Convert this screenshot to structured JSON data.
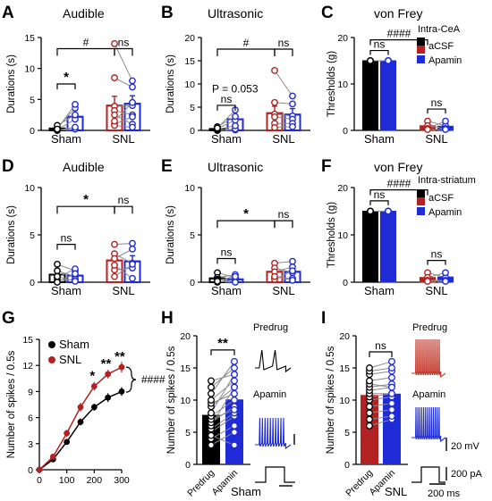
{
  "colors": {
    "sham": "#000000",
    "snl": "#b22222",
    "apamin": "#1f2bd6",
    "acsf": "#000000",
    "snl_acsf": "#b22222",
    "trace_predrug_sham": "#000000",
    "trace_predrug_snl": "#c0392b",
    "trace_apamin": "#1f2bd6",
    "gray_line": "#8a8a8a"
  },
  "chart_data": [
    {
      "panel": "A",
      "type": "bar",
      "title": "Audible",
      "ylabel": "Durations (s)",
      "ylim": [
        0,
        15
      ],
      "yticks": [
        0,
        5,
        10,
        15
      ],
      "groups": [
        "Sham",
        "SNL"
      ],
      "series": [
        {
          "name": "aCSF",
          "values": [
            0.3,
            4.0
          ],
          "err": [
            0.2,
            1.5
          ]
        },
        {
          "name": "Apamin",
          "values": [
            2.2,
            4.3
          ],
          "err": [
            1.0,
            1.3
          ]
        }
      ],
      "paired_points": [
        [
          [
            0,
            0.2
          ],
          [
            0,
            0.5
          ],
          [
            0.1,
            1.8
          ],
          [
            0.4,
            3.6
          ],
          [
            0.8,
            2.5
          ],
          [
            0.2,
            4.2
          ]
        ],
        [
          [
            14.0,
            8.0
          ],
          [
            8.5,
            7.0
          ],
          [
            3.9,
            4.0
          ],
          [
            3.2,
            2.5
          ],
          [
            1.0,
            2.2
          ],
          [
            2.5,
            1.0
          ],
          [
            0.8,
            0.5
          ],
          [
            1.5,
            4.5
          ]
        ]
      ],
      "annotations": [
        "*",
        "#",
        "ns"
      ]
    },
    {
      "panel": "B",
      "type": "bar",
      "title": "Ultrasonic",
      "ylabel": "Durations (s)",
      "ylim": [
        0,
        20
      ],
      "yticks": [
        0,
        5,
        10,
        15,
        20
      ],
      "groups": [
        "Sham",
        "SNL"
      ],
      "series": [
        {
          "name": "aCSF",
          "values": [
            0.3,
            3.7
          ],
          "err": [
            0.2,
            1.5
          ]
        },
        {
          "name": "Apamin",
          "values": [
            2.4,
            3.4
          ],
          "err": [
            0.9,
            1.3
          ]
        }
      ],
      "paired_points": [
        [
          [
            0,
            0.1
          ],
          [
            0,
            0.3
          ],
          [
            0.2,
            1.0
          ],
          [
            0.4,
            2.2
          ],
          [
            0.8,
            3.0
          ],
          [
            0.5,
            4.4
          ]
        ],
        [
          [
            12.9,
            7.4
          ],
          [
            6.0,
            5.7
          ],
          [
            3.5,
            3.1
          ],
          [
            2.9,
            2.4
          ],
          [
            1.5,
            1.5
          ],
          [
            0.6,
            0.8
          ]
        ]
      ],
      "annotations": [
        "P = 0.053",
        "#",
        "ns",
        "ns"
      ]
    },
    {
      "panel": "C",
      "type": "bar",
      "title": "von Frey",
      "ylabel": "Thresholds (g)",
      "ylim": [
        0,
        20
      ],
      "yticks": [
        0,
        10,
        20
      ],
      "groups": [
        "Sham",
        "SNL"
      ],
      "series": [
        {
          "name": "aCSF",
          "values": [
            15,
            1.0
          ],
          "err": [
            0.2,
            0.8
          ]
        },
        {
          "name": "Apamin",
          "values": [
            15,
            0.9
          ],
          "err": [
            0.2,
            0.6
          ]
        }
      ],
      "paired_points": [
        [
          [
            15,
            15
          ],
          [
            15,
            15
          ],
          [
            15,
            15
          ],
          [
            15,
            15
          ]
        ],
        [
          [
            2.0,
            1.0
          ],
          [
            1.0,
            0.4
          ],
          [
            0.4,
            2.0
          ],
          [
            0.2,
            0.2
          ]
        ]
      ],
      "legend_title": "Intra-CeA",
      "legend": [
        "aCSF",
        "Apamin"
      ],
      "annotations": [
        "####",
        "ns",
        "ns"
      ]
    },
    {
      "panel": "D",
      "type": "bar",
      "title": "Audible",
      "ylabel": "Durations (s)",
      "ylim": [
        0,
        10
      ],
      "yticks": [
        0,
        5,
        10
      ],
      "groups": [
        "Sham",
        "SNL"
      ],
      "series": [
        {
          "name": "aCSF",
          "values": [
            0.8,
            2.3
          ],
          "err": [
            0.4,
            0.7
          ]
        },
        {
          "name": "Apamin",
          "values": [
            0.7,
            2.2
          ],
          "err": [
            0.4,
            0.6
          ]
        }
      ],
      "paired_points": [
        [
          [
            1.9,
            1.2
          ],
          [
            1.2,
            0.6
          ],
          [
            0.5,
            1.4
          ],
          [
            0.2,
            0.3
          ],
          [
            0,
            0.9
          ],
          [
            0.6,
            0.1
          ]
        ],
        [
          [
            4.0,
            4.1
          ],
          [
            3.0,
            2.0
          ],
          [
            2.5,
            3.5
          ],
          [
            1.3,
            1.5
          ],
          [
            0.6,
            1.9
          ],
          [
            1.8,
            0.4
          ]
        ]
      ],
      "annotations": [
        "ns",
        "*",
        "ns"
      ]
    },
    {
      "panel": "E",
      "type": "bar",
      "title": "Ultrasonic",
      "ylabel": "Durations (s)",
      "ylim": [
        0,
        10
      ],
      "yticks": [
        0,
        5,
        10
      ],
      "groups": [
        "Sham",
        "SNL"
      ],
      "series": [
        {
          "name": "aCSF",
          "values": [
            0.4,
            1.1
          ],
          "err": [
            0.2,
            0.5
          ]
        },
        {
          "name": "Apamin",
          "values": [
            0.3,
            1.1
          ],
          "err": [
            0.2,
            0.4
          ]
        }
      ],
      "paired_points": [
        [
          [
            1.0,
            0.5
          ],
          [
            0.5,
            0.8
          ],
          [
            0.3,
            0.1
          ],
          [
            0,
            0.3
          ],
          [
            0.2,
            0.6
          ],
          [
            0.1,
            0
          ]
        ],
        [
          [
            2.0,
            2.2
          ],
          [
            1.5,
            1.0
          ],
          [
            1.1,
            1.6
          ],
          [
            0.5,
            0.4
          ],
          [
            0.3,
            1.2
          ],
          [
            0.6,
            0.2
          ]
        ]
      ],
      "annotations": [
        "ns",
        "*",
        "ns"
      ]
    },
    {
      "panel": "F",
      "type": "bar",
      "title": "von Frey",
      "ylabel": "Thresholds (g)",
      "ylim": [
        0,
        20
      ],
      "yticks": [
        0,
        10,
        20
      ],
      "groups": [
        "Sham",
        "SNL"
      ],
      "series": [
        {
          "name": "aCSF",
          "values": [
            15,
            1.0
          ],
          "err": [
            0.2,
            0.6
          ]
        },
        {
          "name": "Apamin",
          "values": [
            15,
            1.1
          ],
          "err": [
            0.2,
            0.6
          ]
        }
      ],
      "paired_points": [
        [
          [
            15,
            15
          ],
          [
            15,
            15
          ],
          [
            15,
            15
          ],
          [
            15,
            15
          ]
        ],
        [
          [
            2.0,
            1.0
          ],
          [
            1.0,
            2.0
          ],
          [
            0.4,
            0.4
          ],
          [
            0.2,
            0.2
          ]
        ]
      ],
      "legend_title": "Intra-striatum",
      "legend": [
        "aCSF",
        "Apamin"
      ],
      "annotations": [
        "####",
        "ns",
        "ns"
      ]
    },
    {
      "panel": "G",
      "type": "line",
      "ylabel": "Number of spikes / 0.5s",
      "xlim": [
        0,
        300
      ],
      "xticks": [
        0,
        100,
        200,
        300
      ],
      "ylim": [
        0,
        15
      ],
      "yticks": [
        0,
        3,
        6,
        9,
        12,
        15
      ],
      "x": [
        0,
        50,
        100,
        150,
        200,
        250,
        300
      ],
      "series": [
        {
          "name": "Sham",
          "values": [
            0,
            1.2,
            3.2,
            5.5,
            7.2,
            8.3,
            9.0
          ],
          "err": [
            0,
            0.2,
            0.3,
            0.4,
            0.4,
            0.5,
            0.5
          ]
        },
        {
          "name": "SNL",
          "values": [
            0,
            1.5,
            4.2,
            7.2,
            9.6,
            11.0,
            11.8
          ],
          "err": [
            0,
            0.3,
            0.4,
            0.5,
            0.5,
            0.5,
            0.6
          ]
        }
      ],
      "legend": [
        "Sham",
        "SNL"
      ],
      "annotations": [
        "*",
        "**",
        "**",
        "####"
      ],
      "annotation_x": [
        200,
        250,
        300
      ]
    },
    {
      "panel": "H",
      "type": "bar",
      "ylabel": "Number of spikes / 0.5s",
      "ylim": [
        0,
        20
      ],
      "yticks": [
        0,
        5,
        10,
        15,
        20
      ],
      "categories": [
        "Predrug",
        "Apamin"
      ],
      "group": "Sham",
      "values": [
        7.7,
        10.1
      ],
      "err": [
        0.7,
        0.9
      ],
      "paired_points": [
        [
          3,
          5
        ],
        [
          4,
          6
        ],
        [
          5,
          7.5
        ],
        [
          5.5,
          8
        ],
        [
          6,
          12
        ],
        [
          6.5,
          9
        ],
        [
          7,
          8.5
        ],
        [
          7.5,
          10
        ],
        [
          8,
          14
        ],
        [
          9,
          12
        ],
        [
          9.5,
          11
        ],
        [
          10,
          13
        ],
        [
          11,
          16
        ],
        [
          12,
          15
        ],
        [
          13,
          14
        ],
        [
          4.5,
          3
        ]
      ],
      "annotations": [
        "**"
      ],
      "trace_labels": [
        "Predrug",
        "Apamin"
      ]
    },
    {
      "panel": "I",
      "type": "bar",
      "ylabel": "Number of spikes / 0.5s",
      "ylim": [
        0,
        20
      ],
      "yticks": [
        0,
        5,
        10,
        15,
        20
      ],
      "categories": [
        "Predrug",
        "Apamin"
      ],
      "group": "SNL",
      "values": [
        10.8,
        11.0
      ],
      "err": [
        0.7,
        0.7
      ],
      "paired_points": [
        [
          6,
          7
        ],
        [
          7,
          7.5
        ],
        [
          8,
          8.5
        ],
        [
          9,
          9.5
        ],
        [
          10,
          10.5
        ],
        [
          10.5,
          11
        ],
        [
          11,
          11
        ],
        [
          11.5,
          12
        ],
        [
          12,
          12.5
        ],
        [
          12.5,
          12
        ],
        [
          13,
          13.5
        ],
        [
          14,
          14.5
        ],
        [
          14.5,
          15
        ],
        [
          15,
          16
        ]
      ],
      "annotations": [
        "ns"
      ],
      "trace_labels": [
        "Predrug",
        "Apamin"
      ],
      "scale_bars": [
        "20 mV",
        "200 pA",
        "200 ms"
      ]
    }
  ]
}
